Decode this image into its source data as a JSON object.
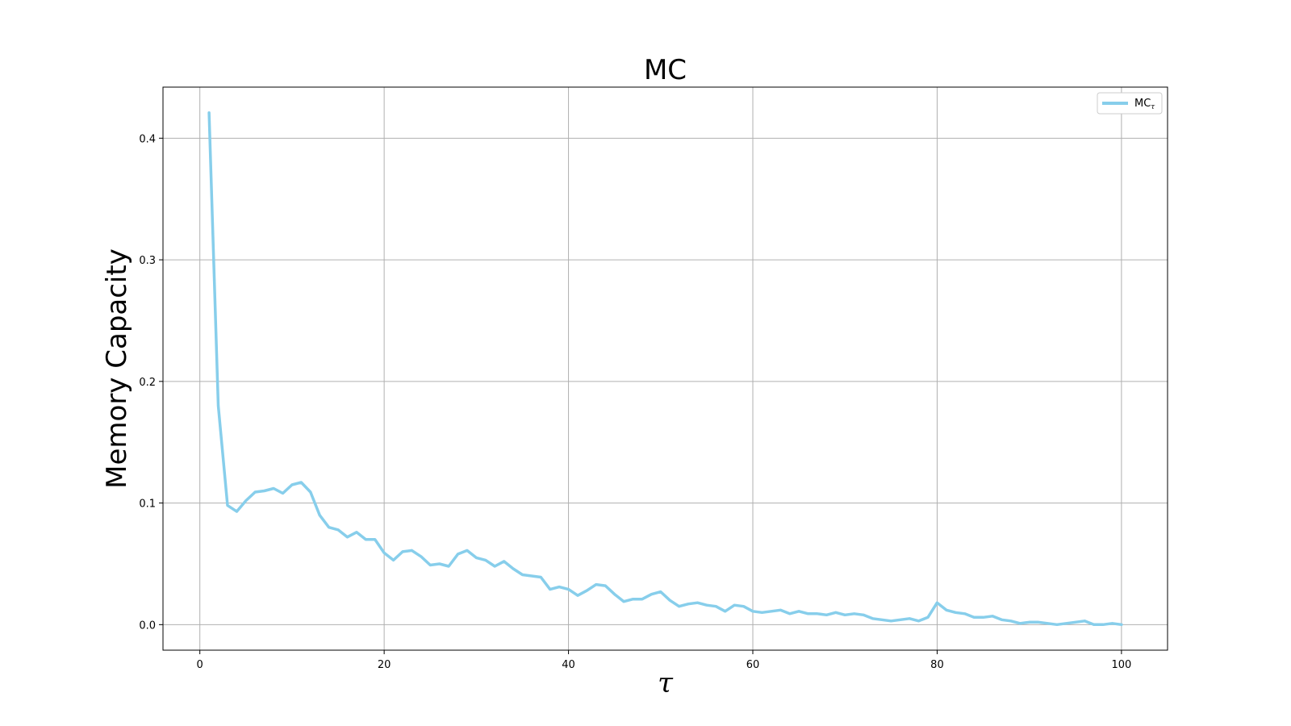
{
  "chart_data": {
    "type": "line",
    "title": "MC",
    "xlabel": "τ",
    "ylabel": "Memory Capacity",
    "xlim": [
      -4,
      105
    ],
    "ylim": [
      -0.021,
      0.442
    ],
    "xticks": [
      0,
      20,
      40,
      60,
      80,
      100
    ],
    "yticks": [
      0.0,
      0.1,
      0.2,
      0.3,
      0.4
    ],
    "grid": true,
    "legend": {
      "position": "top-right",
      "label": "MC",
      "subscript": "τ"
    },
    "series": [
      {
        "name": "MCτ",
        "color": "#87CEEB",
        "x": [
          1,
          2,
          3,
          4,
          5,
          6,
          7,
          8,
          9,
          10,
          11,
          12,
          13,
          14,
          15,
          16,
          17,
          18,
          19,
          20,
          21,
          22,
          23,
          24,
          25,
          26,
          27,
          28,
          29,
          30,
          31,
          32,
          33,
          34,
          35,
          36,
          37,
          38,
          39,
          40,
          41,
          42,
          43,
          44,
          45,
          46,
          47,
          48,
          49,
          50,
          51,
          52,
          53,
          54,
          55,
          56,
          57,
          58,
          59,
          60,
          61,
          62,
          63,
          64,
          65,
          66,
          67,
          68,
          69,
          70,
          71,
          72,
          73,
          74,
          75,
          76,
          77,
          78,
          79,
          80,
          81,
          82,
          83,
          84,
          85,
          86,
          87,
          88,
          89,
          90,
          91,
          92,
          93,
          94,
          95,
          96,
          97,
          98,
          99,
          100
        ],
        "y": [
          0.421,
          0.18,
          0.098,
          0.093,
          0.102,
          0.109,
          0.11,
          0.112,
          0.108,
          0.115,
          0.117,
          0.109,
          0.09,
          0.08,
          0.078,
          0.072,
          0.076,
          0.07,
          0.07,
          0.059,
          0.053,
          0.06,
          0.061,
          0.056,
          0.049,
          0.05,
          0.048,
          0.058,
          0.061,
          0.055,
          0.053,
          0.048,
          0.052,
          0.046,
          0.041,
          0.04,
          0.039,
          0.029,
          0.031,
          0.029,
          0.024,
          0.028,
          0.033,
          0.032,
          0.025,
          0.019,
          0.021,
          0.021,
          0.025,
          0.027,
          0.02,
          0.015,
          0.017,
          0.018,
          0.016,
          0.015,
          0.011,
          0.016,
          0.015,
          0.011,
          0.01,
          0.011,
          0.012,
          0.009,
          0.011,
          0.009,
          0.009,
          0.008,
          0.01,
          0.008,
          0.009,
          0.008,
          0.005,
          0.004,
          0.003,
          0.004,
          0.005,
          0.003,
          0.006,
          0.018,
          0.012,
          0.01,
          0.009,
          0.006,
          0.006,
          0.007,
          0.004,
          0.003,
          0.001,
          0.002,
          0.002,
          0.001,
          0.0,
          0.001,
          0.002,
          0.003,
          0.0,
          0.0,
          0.001,
          0.0
        ]
      }
    ]
  }
}
